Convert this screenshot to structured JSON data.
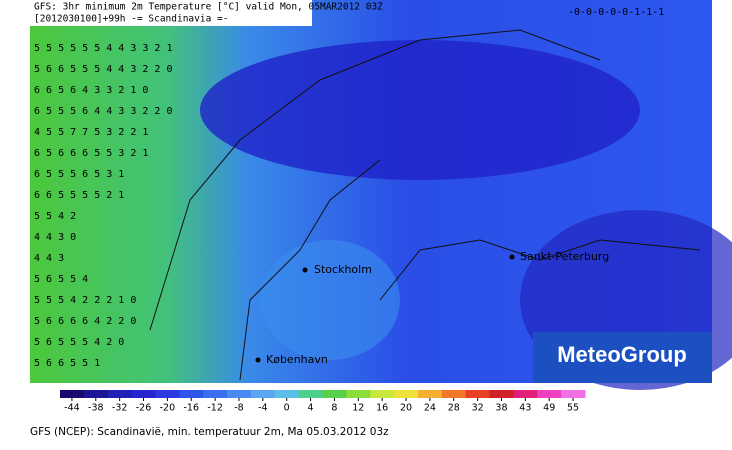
{
  "header": {
    "line1": "GFS: 3hr minimum 2m Temperature [°C] valid Mon, 05MAR2012 03Z",
    "line2": "[2012030100]+99h  -= Scandinavia =-"
  },
  "grid_rows": [
    "5 5 5 5 5 5 4 4 3 3 2 1",
    "5 6 6 5 5 5 4 4 3 2 2 0",
    "6 6 5 6 4 3 3 2 1 0",
    "6 5 5 5 6 4 4 3 3 2 2 0",
    "4 5 5 7 7 5 3 2 2 1",
    "6 5 6 6 6 5 5 3 2 1",
    "6 5 5 5 6 5 3 1",
    "6 6 5 5 5 5 2 1",
    "5 5 4 2",
    "4 4 3 0",
    "4 4 3",
    "5 6 5 5 4",
    "5 5 5 4 2 2 2 1 0",
    "5 6 6 6 6 4 2 2 0",
    "5 6 5 5 5 4 2 0",
    "5 6 6 5 5 1"
  ],
  "top_right_row": "-0-0-0-0-0-1-1-1",
  "cities": [
    "Stockholm",
    "Sankt-Peterburg",
    "København"
  ],
  "logo": "MeteoGroup",
  "colorbar": {
    "ticks": [
      -44,
      -38,
      -32,
      -26,
      -20,
      -16,
      -12,
      -8,
      -4,
      0,
      4,
      8,
      12,
      16,
      20,
      24,
      28,
      32,
      38,
      43,
      49,
      55
    ],
    "colors": [
      "#1a0a6e",
      "#1e1496",
      "#2020b4",
      "#2626cc",
      "#2a3ae0",
      "#2e55ea",
      "#3a6ef0",
      "#4a88f2",
      "#5aa6f0",
      "#5ac0e8",
      "#4ccf8a",
      "#5ad04a",
      "#8cdc3a",
      "#c8e83a",
      "#f0e03a",
      "#f5b030",
      "#f07828",
      "#e84024",
      "#d0202a",
      "#e0207a",
      "#f040c0",
      "#f070e8"
    ]
  },
  "caption": "GFS (NCEP): Scandinavië, min. temperatuur 2m, Ma 05.03.2012 03z"
}
